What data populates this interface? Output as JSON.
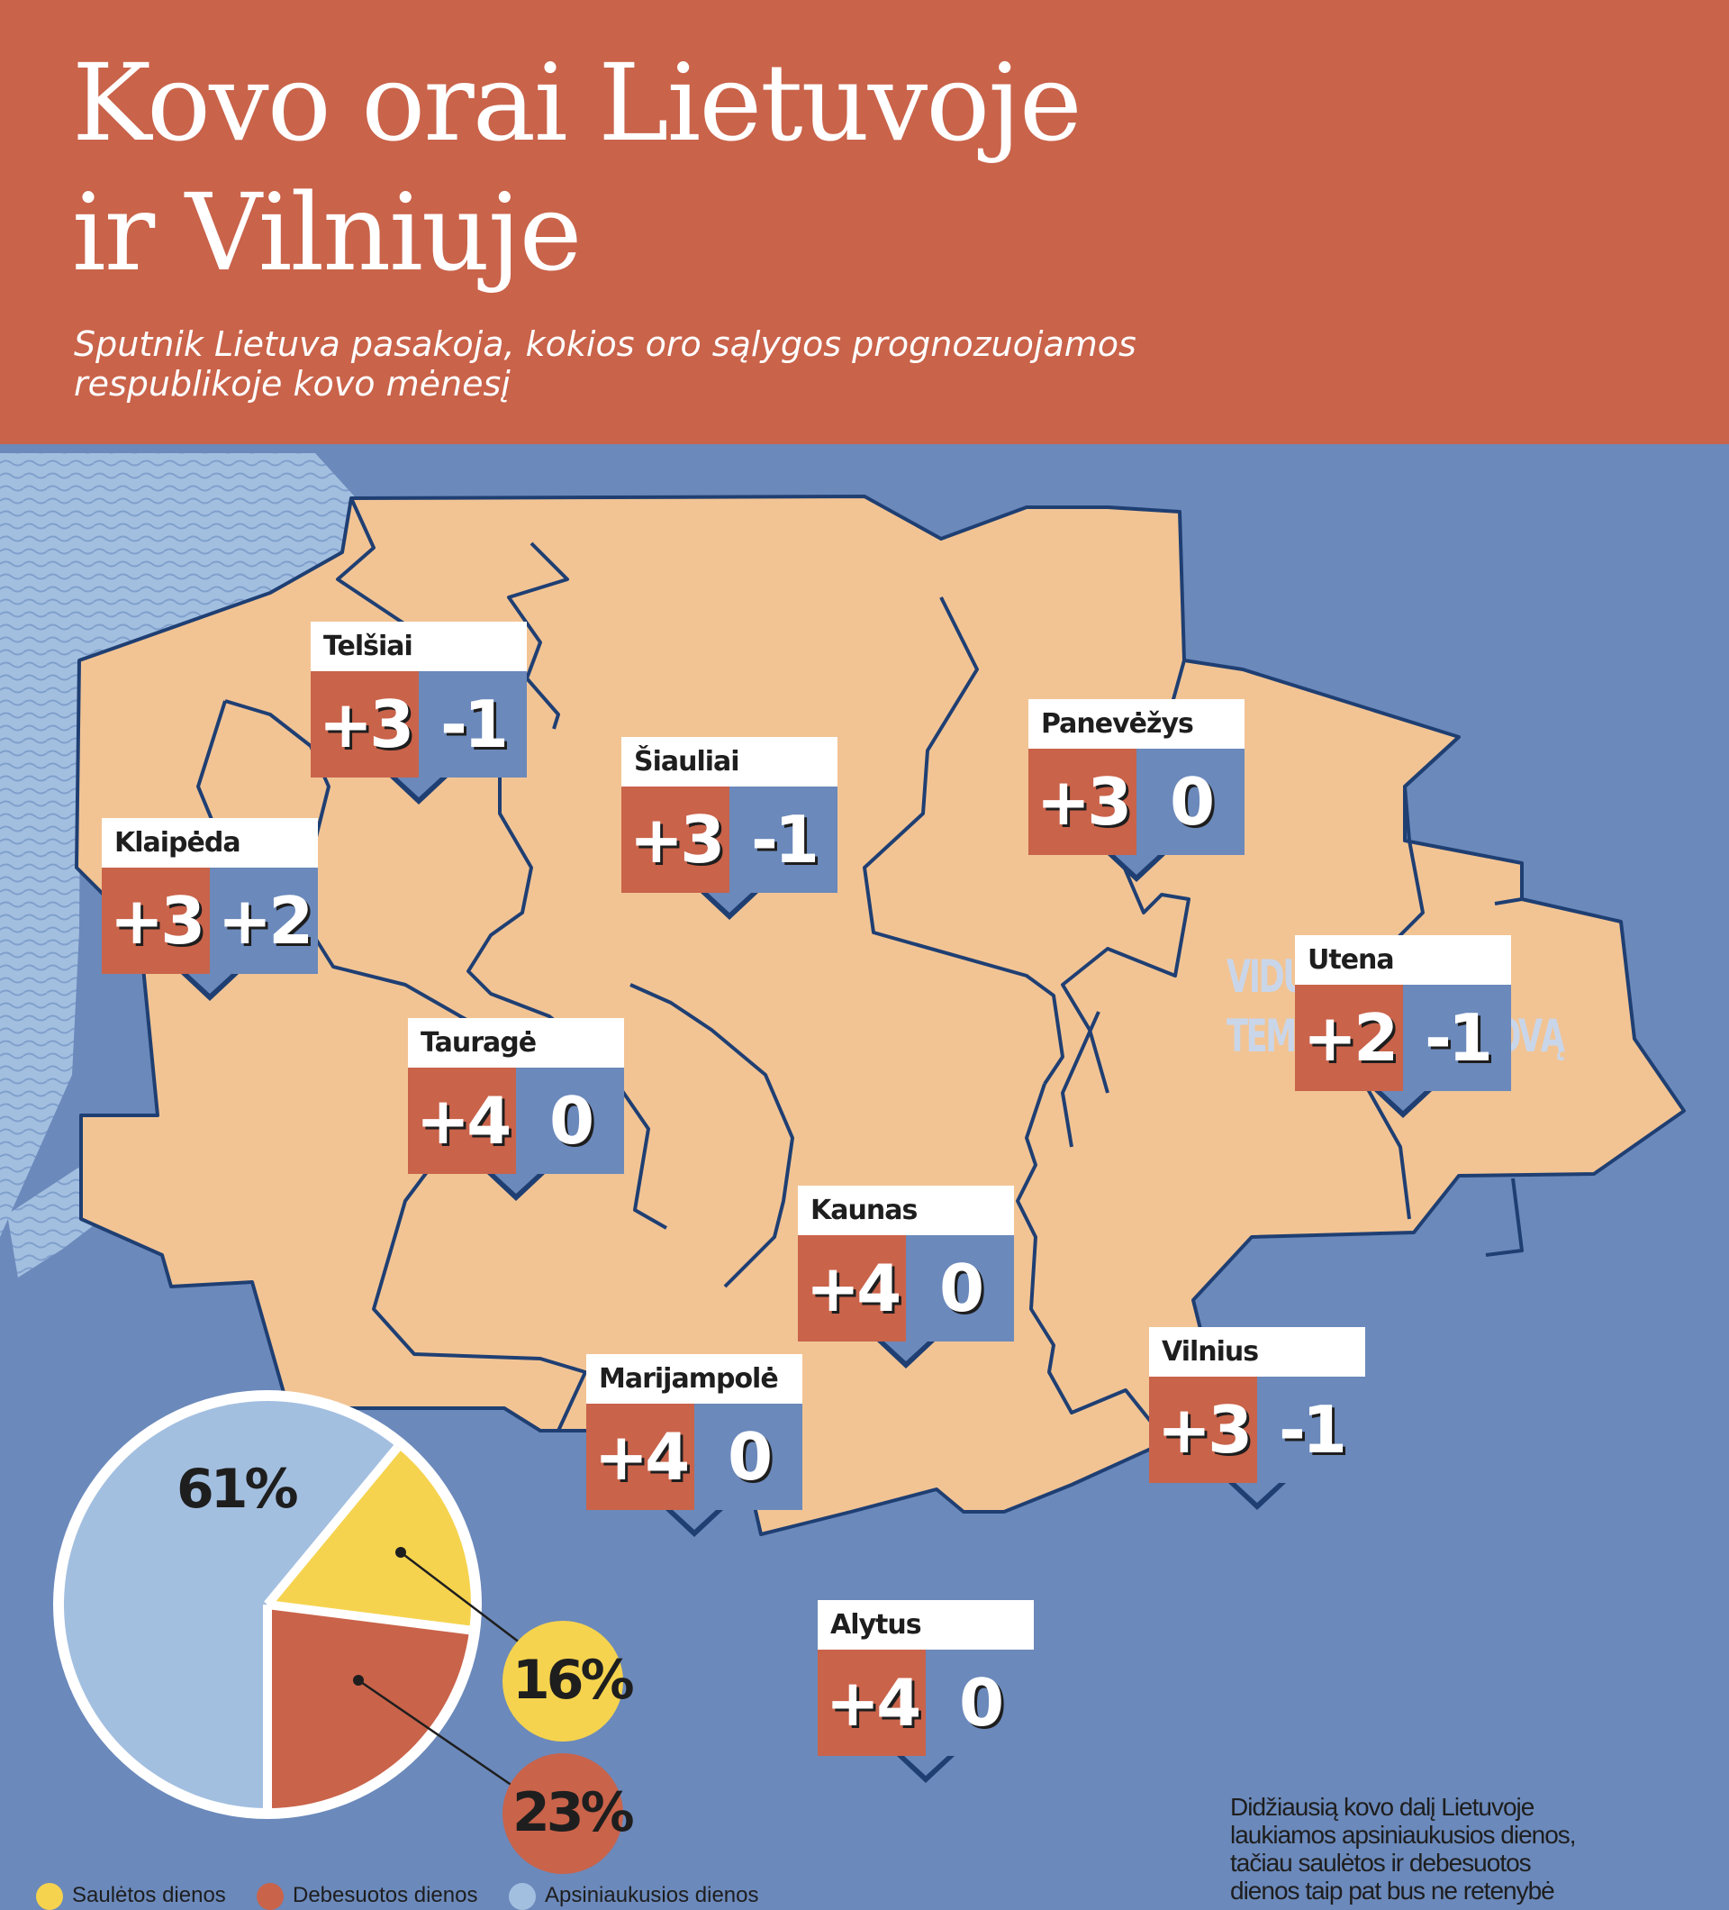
{
  "header": {
    "title_line1": "Kovo orai Lietuvoje",
    "title_line2": "ir Vilniuje",
    "subtitle_line1": "Sputnik Lietuva pasakoja, kokios oro sąlygos prognozuojamos",
    "subtitle_line2": "respublikoje kovo mėnesį"
  },
  "legend": {
    "title_line1": "VIDUTINĖ",
    "title_line2": "TEMPERATŪRA KOVĄ"
  },
  "colors": {
    "header": "#c9634a",
    "sea": "#6b89bb",
    "land": "#f2c494",
    "day": "#c9634a",
    "night": "#6b89bb",
    "sun": "#f5d34e",
    "cloud": "#a3bfe0"
  },
  "cities": [
    {
      "name": "Telšiai",
      "day": "+3",
      "night": "-1"
    },
    {
      "name": "Šiauliai",
      "day": "+3",
      "night": "-1"
    },
    {
      "name": "Panevėžys",
      "day": "+3",
      "night": "0"
    },
    {
      "name": "Klaipėda",
      "day": "+3",
      "night": "+2"
    },
    {
      "name": "Utena",
      "day": "+2",
      "night": "-1"
    },
    {
      "name": "Tauragė",
      "day": "+4",
      "night": "0"
    },
    {
      "name": "Kaunas",
      "day": "+4",
      "night": "0"
    },
    {
      "name": "Vilnius",
      "day": "+3",
      "night": "-1"
    },
    {
      "name": "Marijampolė",
      "day": "+4",
      "night": "0"
    },
    {
      "name": "Alytus",
      "day": "+4",
      "night": "0"
    }
  ],
  "chart_data": {
    "type": "pie",
    "slices": [
      {
        "label": "Apsiniaukusios dienos",
        "value": 61,
        "text": "61%",
        "color": "#a3bfe0"
      },
      {
        "label": "Saulėtos dienos",
        "value": 16,
        "text": "16%",
        "color": "#f5d34e"
      },
      {
        "label": "Debesuotos dienos",
        "value": 23,
        "text": "23%",
        "color": "#c9634a"
      }
    ]
  },
  "note": {
    "line1": "Didžiausią kovo dalį Lietuvoje",
    "line2": "laukiamos apsiniaukusios  dienos,",
    "line3": "tačiau saulėtos ir debesuotos",
    "line4": "dienos taip pat bus ne retenybė"
  },
  "pie_legend": {
    "sun": "Saulėtos dienos",
    "cloudy": "Debesuotos dienos",
    "overcast": "Apsiniaukusios dienos"
  }
}
